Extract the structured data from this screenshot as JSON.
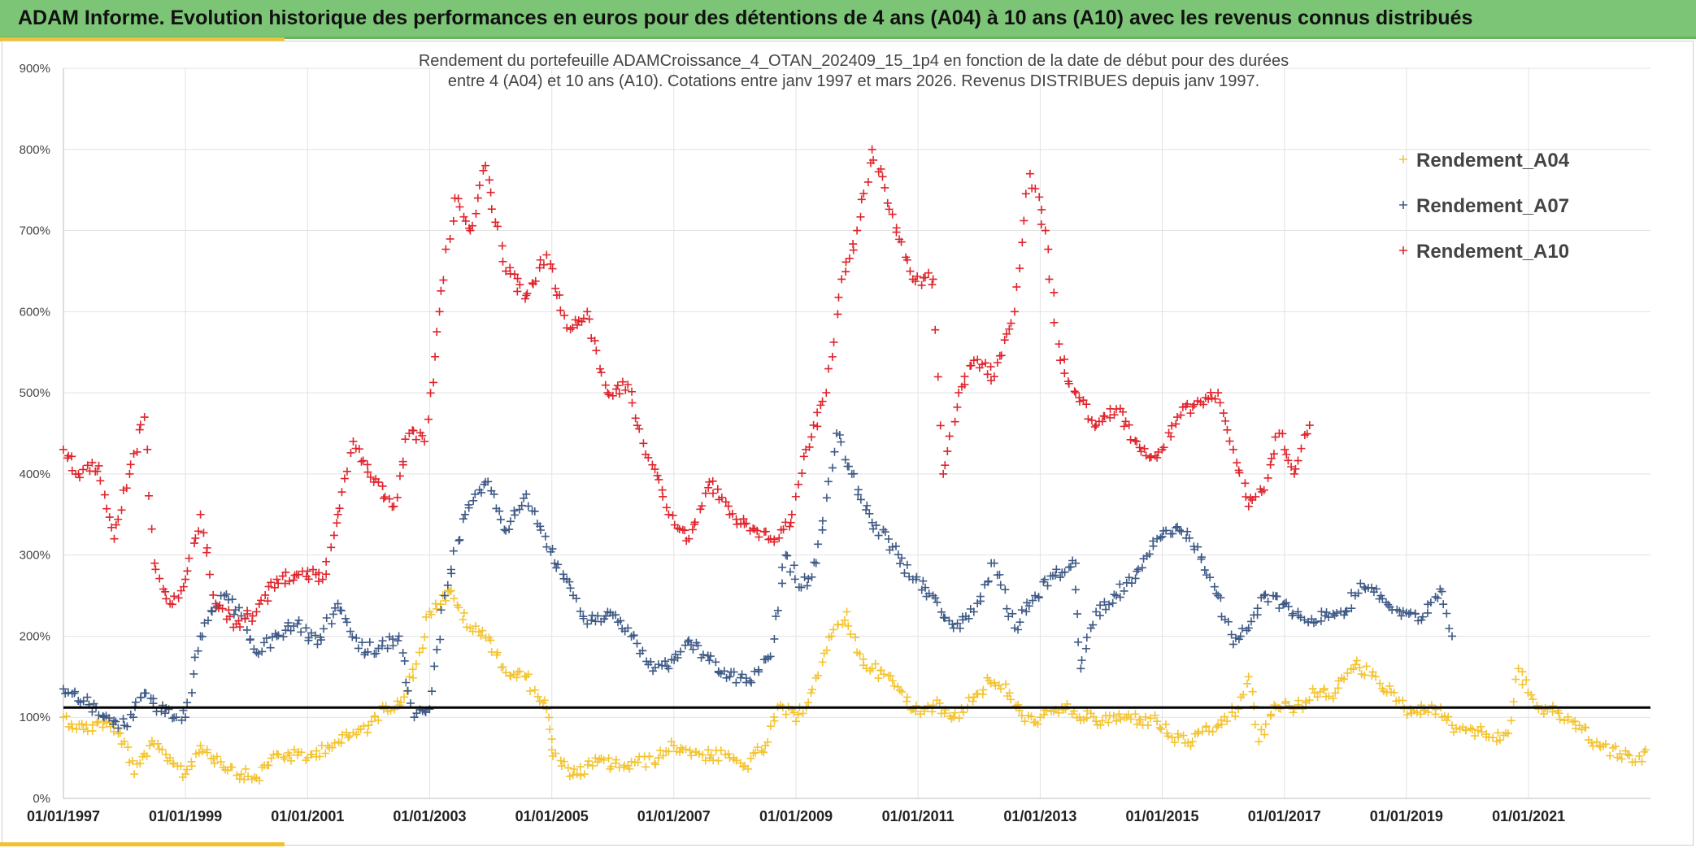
{
  "banner": {
    "title": "ADAM Informe. Evolution historique des performances en euros pour des détentions de 4 ans (A04) à 10 ans (A10) avec les revenus connus distribués"
  },
  "colors": {
    "banner_bg": "#7cc576",
    "accent": "#f2c12e",
    "A04": "#f4c430",
    "A07": "#3f5a86",
    "A10": "#e0242c",
    "reference_line": "#000000",
    "gridline": "#e3e3e3"
  },
  "chart_data": {
    "type": "scatter",
    "title_lines": [
      "Rendement du portefeuille ADAMCroissance_4_OTAN_202409_15_1p4  en fonction de la date de début pour des durées",
      "entre 4 (A04) et 10 ans (A10). Cotations entre janv 1997 et mars 2026. Revenus DISTRIBUES depuis janv 1997."
    ],
    "x_range": [
      "1997-01-01",
      "2022-12-31"
    ],
    "y_range": [
      0,
      900
    ],
    "y_ticks": [
      0,
      100,
      200,
      300,
      400,
      500,
      600,
      700,
      800,
      900
    ],
    "y_tick_labels": [
      "0%",
      "100%",
      "200%",
      "300%",
      "400%",
      "500%",
      "600%",
      "700%",
      "800%",
      "900%"
    ],
    "x_ticks": [
      "1997-01-01",
      "1999-01-01",
      "2001-01-01",
      "2003-01-01",
      "2005-01-01",
      "2007-01-01",
      "2009-01-01",
      "2011-01-01",
      "2013-01-01",
      "2015-01-01",
      "2017-01-01",
      "2019-01-01",
      "2021-01-01"
    ],
    "x_tick_labels": [
      "01/01/1997",
      "01/01/1999",
      "01/01/2001",
      "01/01/2003",
      "01/01/2005",
      "01/01/2007",
      "01/01/2009",
      "01/01/2011",
      "01/01/2013",
      "01/01/2015",
      "01/01/2017",
      "01/01/2019",
      "01/01/2021"
    ],
    "grid": true,
    "legend_position": "top-right",
    "marker": "+",
    "reference_line": {
      "y": 112
    },
    "series": [
      {
        "name": "Rendement_A04",
        "color": "#f4c430",
        "points": [
          [
            "1997-01-01",
            100
          ],
          [
            "1997-05-01",
            85
          ],
          [
            "1997-09-01",
            95
          ],
          [
            "1998-01-01",
            70
          ],
          [
            "1998-03-01",
            30
          ],
          [
            "1998-06-01",
            65
          ],
          [
            "1998-10-01",
            50
          ],
          [
            "1999-01-01",
            30
          ],
          [
            "1999-04-01",
            65
          ],
          [
            "1999-08-01",
            45
          ],
          [
            "1999-12-01",
            30
          ],
          [
            "2000-03-01",
            25
          ],
          [
            "2000-07-01",
            55
          ],
          [
            "2001-01-01",
            50
          ],
          [
            "2001-05-01",
            65
          ],
          [
            "2001-09-01",
            75
          ],
          [
            "2002-01-01",
            90
          ],
          [
            "2002-04-01",
            110
          ],
          [
            "2002-08-01",
            125
          ],
          [
            "2002-11-01",
            180
          ],
          [
            "2003-01-01",
            230
          ],
          [
            "2003-05-01",
            255
          ],
          [
            "2003-09-01",
            210
          ],
          [
            "2004-01-01",
            195
          ],
          [
            "2004-04-01",
            155
          ],
          [
            "2004-08-01",
            150
          ],
          [
            "2004-12-01",
            110
          ],
          [
            "2005-01-01",
            60
          ],
          [
            "2005-03-01",
            40
          ],
          [
            "2005-06-01",
            30
          ],
          [
            "2005-10-01",
            45
          ],
          [
            "2006-04-01",
            40
          ],
          [
            "2006-10-01",
            50
          ],
          [
            "2007-01-01",
            65
          ],
          [
            "2007-06-01",
            55
          ],
          [
            "2007-12-01",
            50
          ],
          [
            "2008-03-01",
            40
          ],
          [
            "2008-07-01",
            65
          ],
          [
            "2008-10-01",
            115
          ],
          [
            "2009-01-01",
            95
          ],
          [
            "2009-04-01",
            130
          ],
          [
            "2009-08-01",
            200
          ],
          [
            "2009-11-01",
            230
          ],
          [
            "2010-01-01",
            180
          ],
          [
            "2010-04-01",
            160
          ],
          [
            "2010-08-01",
            145
          ],
          [
            "2010-12-01",
            110
          ],
          [
            "2011-04-01",
            115
          ],
          [
            "2011-08-01",
            100
          ],
          [
            "2011-12-01",
            125
          ],
          [
            "2012-03-01",
            145
          ],
          [
            "2012-07-01",
            130
          ],
          [
            "2012-10-01",
            95
          ],
          [
            "2013-01-01",
            100
          ],
          [
            "2013-06-01",
            110
          ],
          [
            "2013-12-01",
            95
          ],
          [
            "2014-06-01",
            100
          ],
          [
            "2014-12-01",
            95
          ],
          [
            "2015-03-01",
            75
          ],
          [
            "2015-07-01",
            70
          ],
          [
            "2015-12-01",
            90
          ],
          [
            "2016-04-01",
            110
          ],
          [
            "2016-06-01",
            150
          ],
          [
            "2016-08-01",
            70
          ],
          [
            "2016-11-01",
            115
          ],
          [
            "2017-03-01",
            110
          ],
          [
            "2017-07-01",
            130
          ],
          [
            "2017-11-01",
            130
          ],
          [
            "2018-03-01",
            165
          ],
          [
            "2018-07-01",
            150
          ],
          [
            "2018-11-01",
            120
          ],
          [
            "2019-02-01",
            105
          ],
          [
            "2019-06-01",
            115
          ],
          [
            "2019-10-01",
            90
          ],
          [
            "2020-02-01",
            85
          ],
          [
            "2020-06-01",
            75
          ],
          [
            "2020-09-01",
            80
          ],
          [
            "2020-11-01",
            160
          ],
          [
            "2021-03-01",
            110
          ],
          [
            "2021-07-01",
            105
          ],
          [
            "2021-11-01",
            90
          ],
          [
            "2022-03-01",
            65
          ],
          [
            "2022-07-01",
            55
          ],
          [
            "2022-10-01",
            45
          ],
          [
            "2022-12-01",
            60
          ]
        ]
      },
      {
        "name": "Rendement_A07",
        "color": "#3f5a86",
        "points": [
          [
            "1997-01-01",
            135
          ],
          [
            "1997-05-01",
            120
          ],
          [
            "1997-09-01",
            100
          ],
          [
            "1998-01-01",
            90
          ],
          [
            "1998-05-01",
            130
          ],
          [
            "1998-09-01",
            105
          ],
          [
            "1999-01-01",
            100
          ],
          [
            "1999-04-01",
            200
          ],
          [
            "1999-08-01",
            250
          ],
          [
            "1999-12-01",
            225
          ],
          [
            "2000-03-01",
            180
          ],
          [
            "2000-07-01",
            200
          ],
          [
            "2000-11-01",
            215
          ],
          [
            "2001-03-01",
            190
          ],
          [
            "2001-07-01",
            240
          ],
          [
            "2001-11-01",
            185
          ],
          [
            "2002-03-01",
            185
          ],
          [
            "2002-07-01",
            200
          ],
          [
            "2002-10-01",
            100
          ],
          [
            "2003-01-01",
            110
          ],
          [
            "2003-04-01",
            250
          ],
          [
            "2003-08-01",
            350
          ],
          [
            "2003-12-01",
            390
          ],
          [
            "2004-04-01",
            330
          ],
          [
            "2004-08-01",
            375
          ],
          [
            "2004-12-01",
            310
          ],
          [
            "2005-04-01",
            270
          ],
          [
            "2005-08-01",
            215
          ],
          [
            "2005-12-01",
            230
          ],
          [
            "2006-04-01",
            210
          ],
          [
            "2006-08-01",
            165
          ],
          [
            "2006-12-01",
            160
          ],
          [
            "2007-04-01",
            195
          ],
          [
            "2007-08-01",
            170
          ],
          [
            "2007-12-01",
            150
          ],
          [
            "2008-04-01",
            145
          ],
          [
            "2008-08-01",
            175
          ],
          [
            "2008-11-01",
            300
          ],
          [
            "2009-02-01",
            260
          ],
          [
            "2009-05-01",
            290
          ],
          [
            "2009-09-01",
            450
          ],
          [
            "2009-12-01",
            400
          ],
          [
            "2010-04-01",
            340
          ],
          [
            "2010-08-01",
            310
          ],
          [
            "2010-12-01",
            270
          ],
          [
            "2011-04-01",
            250
          ],
          [
            "2011-08-01",
            210
          ],
          [
            "2011-12-01",
            230
          ],
          [
            "2012-04-01",
            290
          ],
          [
            "2012-08-01",
            210
          ],
          [
            "2012-12-01",
            250
          ],
          [
            "2013-04-01",
            275
          ],
          [
            "2013-08-01",
            290
          ],
          [
            "2013-09-01",
            160
          ],
          [
            "2013-12-01",
            230
          ],
          [
            "2014-04-01",
            250
          ],
          [
            "2014-08-01",
            280
          ],
          [
            "2014-12-01",
            320
          ],
          [
            "2015-04-01",
            335
          ],
          [
            "2015-08-01",
            310
          ],
          [
            "2015-12-01",
            250
          ],
          [
            "2016-03-01",
            190
          ],
          [
            "2016-06-01",
            210
          ],
          [
            "2016-09-01",
            250
          ],
          [
            "2017-01-01",
            240
          ],
          [
            "2017-05-01",
            220
          ],
          [
            "2017-09-01",
            225
          ],
          [
            "2018-01-01",
            230
          ],
          [
            "2018-04-01",
            265
          ],
          [
            "2018-08-01",
            250
          ],
          [
            "2018-12-01",
            225
          ],
          [
            "2019-04-01",
            220
          ],
          [
            "2019-08-01",
            255
          ],
          [
            "2019-10-01",
            200
          ]
        ]
      },
      {
        "name": "Rendement_A10",
        "color": "#e0242c",
        "points": [
          [
            "1997-01-01",
            430
          ],
          [
            "1997-04-01",
            400
          ],
          [
            "1997-08-01",
            410
          ],
          [
            "1997-11-01",
            320
          ],
          [
            "1998-02-01",
            400
          ],
          [
            "1998-05-01",
            470
          ],
          [
            "1998-07-01",
            290
          ],
          [
            "1998-10-01",
            240
          ],
          [
            "1999-01-01",
            270
          ],
          [
            "1999-04-01",
            350
          ],
          [
            "1999-07-01",
            240
          ],
          [
            "1999-11-01",
            215
          ],
          [
            "2000-03-01",
            230
          ],
          [
            "2000-07-01",
            270
          ],
          [
            "2000-12-01",
            280
          ],
          [
            "2001-04-01",
            270
          ],
          [
            "2001-07-01",
            350
          ],
          [
            "2001-10-01",
            440
          ],
          [
            "2002-02-01",
            390
          ],
          [
            "2002-06-01",
            360
          ],
          [
            "2002-09-01",
            450
          ],
          [
            "2002-12-01",
            440
          ],
          [
            "2003-03-01",
            600
          ],
          [
            "2003-06-01",
            740
          ],
          [
            "2003-09-01",
            700
          ],
          [
            "2003-12-01",
            780
          ],
          [
            "2004-04-01",
            650
          ],
          [
            "2004-08-01",
            620
          ],
          [
            "2004-12-01",
            670
          ],
          [
            "2005-04-01",
            580
          ],
          [
            "2005-08-01",
            600
          ],
          [
            "2005-12-01",
            500
          ],
          [
            "2006-04-01",
            510
          ],
          [
            "2006-08-01",
            420
          ],
          [
            "2006-12-01",
            350
          ],
          [
            "2007-04-01",
            320
          ],
          [
            "2007-08-01",
            390
          ],
          [
            "2007-12-01",
            350
          ],
          [
            "2008-04-01",
            330
          ],
          [
            "2008-08-01",
            320
          ],
          [
            "2008-12-01",
            340
          ],
          [
            "2009-03-01",
            430
          ],
          [
            "2009-07-01",
            500
          ],
          [
            "2009-10-01",
            640
          ],
          [
            "2010-01-01",
            700
          ],
          [
            "2010-04-01",
            800
          ],
          [
            "2010-08-01",
            720
          ],
          [
            "2010-12-01",
            640
          ],
          [
            "2011-04-01",
            640
          ],
          [
            "2011-06-01",
            400
          ],
          [
            "2011-09-01",
            500
          ],
          [
            "2011-12-01",
            540
          ],
          [
            "2012-04-01",
            520
          ],
          [
            "2012-08-01",
            600
          ],
          [
            "2012-11-01",
            770
          ],
          [
            "2013-02-01",
            700
          ],
          [
            "2013-05-01",
            540
          ],
          [
            "2013-08-01",
            500
          ],
          [
            "2013-12-01",
            460
          ],
          [
            "2014-04-01",
            480
          ],
          [
            "2014-08-01",
            440
          ],
          [
            "2014-12-01",
            420
          ],
          [
            "2015-04-01",
            470
          ],
          [
            "2015-08-01",
            490
          ],
          [
            "2015-12-01",
            500
          ],
          [
            "2016-03-01",
            430
          ],
          [
            "2016-06-01",
            360
          ],
          [
            "2016-09-01",
            380
          ],
          [
            "2016-12-01",
            450
          ],
          [
            "2017-03-01",
            400
          ],
          [
            "2017-06-01",
            460
          ]
        ]
      }
    ]
  }
}
